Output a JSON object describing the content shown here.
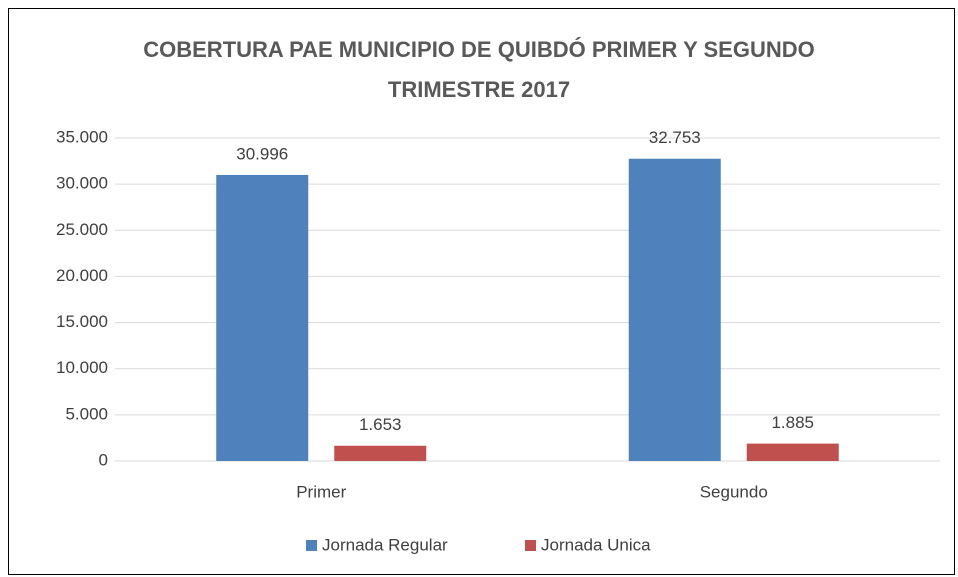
{
  "chart_data": {
    "type": "bar",
    "title": "COBERTURA PAE MUNICIPIO DE QUIBDÓ PRIMER Y SEGUNDO TRIMESTRE 2017",
    "categories": [
      "Primer",
      "Segundo"
    ],
    "series": [
      {
        "name": "Jornada Regular",
        "color": "#4f81bd",
        "values": [
          30996,
          32753
        ],
        "value_labels": [
          "30.996",
          "32.753"
        ]
      },
      {
        "name": "Jornada Unica",
        "color": "#c0504d",
        "values": [
          1653,
          1885
        ],
        "value_labels": [
          "1.653",
          "1.885"
        ]
      }
    ],
    "ylim": [
      0,
      35000
    ],
    "yticks": [
      0,
      {
        "value": 5000,
        "label": "5.000"
      },
      {
        "value": 10000,
        "label": "10.000"
      },
      {
        "value": 15000,
        "label": "15.000"
      },
      {
        "value": 20000,
        "label": "20.000"
      },
      {
        "value": 25000,
        "label": "25.000"
      },
      {
        "value": 30000,
        "label": "30.000"
      },
      {
        "value": 35000,
        "label": "35.000"
      }
    ],
    "grid": true,
    "legend": "bottom"
  }
}
